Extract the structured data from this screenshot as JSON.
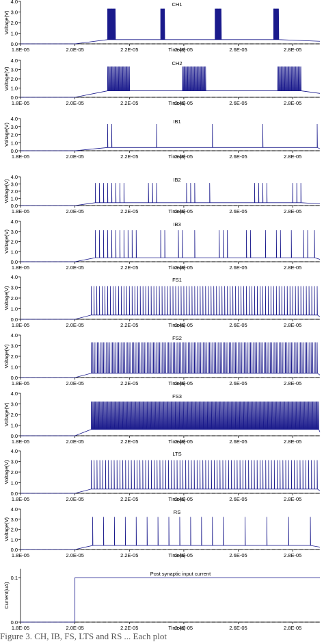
{
  "chart_data": [
    {
      "type": "line",
      "title": "CH1",
      "ylabel": "Voltage(V)",
      "xlabel": "Time(s)",
      "xlim": [
        1.8e-05,
        2.9e-05
      ],
      "ylim": [
        0,
        4
      ],
      "yticks": [
        "0.0",
        "1.0",
        "2.0",
        "3.0",
        "4.0"
      ],
      "xticks": [
        "1.8E-05",
        "2.0E-05",
        "2.2E-05",
        "2.4E-05",
        "2.6E-05",
        "2.8E-05"
      ],
      "baseline": 0.0,
      "onset": 2e-05,
      "peak": 3.3,
      "trough": 0.4,
      "pattern": "bursting",
      "spike_times": [
        2.12e-05,
        2.122e-05,
        2.124e-05,
        2.126e-05,
        2.128e-05,
        2.13e-05,
        2.132e-05,
        2.134e-05,
        2.136e-05,
        2.138e-05,
        2.14e-05,
        2.142e-05,
        2.144e-05,
        2.146e-05,
        2.148e-05,
        2.315e-05,
        2.317e-05,
        2.319e-05,
        2.321e-05,
        2.323e-05,
        2.325e-05,
        2.327e-05,
        2.329e-05,
        2.515e-05,
        2.517e-05,
        2.519e-05,
        2.521e-05,
        2.523e-05,
        2.525e-05,
        2.527e-05,
        2.529e-05,
        2.531e-05,
        2.533e-05,
        2.535e-05,
        2.537e-05,
        2.73e-05,
        2.732e-05,
        2.734e-05,
        2.736e-05,
        2.738e-05,
        2.74e-05,
        2.742e-05,
        2.744e-05,
        2.746e-05,
        2.748e-05
      ]
    },
    {
      "type": "line",
      "title": "CH2",
      "ylabel": "Voltage(V)",
      "xlabel": "Time(s)",
      "xlim": [
        1.8e-05,
        2.9e-05
      ],
      "ylim": [
        0,
        4
      ],
      "yticks": [
        "0.0",
        "1.0",
        "2.0",
        "3.0",
        "4.0"
      ],
      "xticks": [
        "1.8E-05",
        "2.0E-05",
        "2.2E-05",
        "2.4E-05",
        "2.6E-05",
        "2.8E-05"
      ],
      "baseline": 0.0,
      "onset": 2e-05,
      "peak": 3.3,
      "trough": 0.7,
      "pattern": "dense_bursts",
      "bursts": [
        [
          2.12e-05,
          2.2e-05
        ],
        [
          2.395e-05,
          2.48e-05
        ],
        [
          2.745e-05,
          2.83e-05
        ]
      ]
    },
    {
      "type": "line",
      "title": "IB1",
      "ylabel": "Voltage(V)",
      "xlabel": "Time(s)",
      "xlim": [
        1.8e-05,
        2.9e-05
      ],
      "ylim": [
        0,
        4
      ],
      "yticks": [
        "0.0",
        "1.0",
        "2.0",
        "3.0",
        "4.0"
      ],
      "xticks": [
        "1.8E-05",
        "2.0E-05",
        "2.2E-05",
        "2.4E-05",
        "2.6E-05",
        "2.8E-05"
      ],
      "baseline": 0.0,
      "onset": 2e-05,
      "peak": 3.3,
      "trough": 0.4,
      "pattern": "bursting",
      "spike_times": [
        2.12e-05,
        2.135e-05,
        2.3e-05,
        2.505e-05,
        2.69e-05,
        2.89e-05
      ]
    },
    {
      "type": "line",
      "title": "IB2",
      "ylabel": "Voltage(V)",
      "xlabel": "Time(s)",
      "xlim": [
        1.8e-05,
        2.9e-05
      ],
      "ylim": [
        0,
        4
      ],
      "yticks": [
        "0.0",
        "1.0",
        "2.0",
        "3.0",
        "4.0"
      ],
      "xticks": [
        "1.8E-05",
        "2.0E-05",
        "2.2E-05",
        "2.4E-05",
        "2.6E-05",
        "2.8E-05"
      ],
      "baseline": 0.0,
      "onset": 2e-05,
      "peak": 3.1,
      "trough": 0.4,
      "pattern": "bursting",
      "spike_times": [
        2.075e-05,
        2.09e-05,
        2.105e-05,
        2.12e-05,
        2.135e-05,
        2.15e-05,
        2.165e-05,
        2.18e-05,
        2.27e-05,
        2.285e-05,
        2.3e-05,
        2.41e-05,
        2.425e-05,
        2.44e-05,
        2.495e-05,
        2.66e-05,
        2.675e-05,
        2.69e-05,
        2.705e-05,
        2.8e-05,
        2.815e-05,
        2.83e-05
      ]
    },
    {
      "type": "line",
      "title": "IB3",
      "ylabel": "Voltage(V)",
      "xlabel": "Time(s)",
      "xlim": [
        1.8e-05,
        2.9e-05
      ],
      "ylim": [
        0,
        4
      ],
      "yticks": [
        "0.0",
        "1.0",
        "2.0",
        "3.0",
        "4.0"
      ],
      "xticks": [
        "1.8E-05",
        "2.0E-05",
        "2.2E-05",
        "2.4E-05",
        "2.6E-05",
        "2.8E-05"
      ],
      "baseline": 0.0,
      "onset": 2e-05,
      "peak": 3.1,
      "trough": 0.4,
      "pattern": "bursting",
      "spike_times": [
        2.075e-05,
        2.09e-05,
        2.105e-05,
        2.12e-05,
        2.135e-05,
        2.15e-05,
        2.165e-05,
        2.18e-05,
        2.195e-05,
        2.21e-05,
        2.225e-05,
        2.315e-05,
        2.33e-05,
        2.38e-05,
        2.395e-05,
        2.44e-05,
        2.53e-05,
        2.545e-05,
        2.56e-05,
        2.63e-05,
        2.645e-05,
        2.7e-05,
        2.74e-05,
        2.755e-05,
        2.795e-05,
        2.84e-05,
        2.855e-05,
        2.88e-05
      ]
    },
    {
      "type": "line",
      "title": "FS1",
      "ylabel": "Voltage(V)",
      "xlabel": "Time(s)",
      "xlim": [
        1.8e-05,
        2.9e-05
      ],
      "ylim": [
        0,
        4
      ],
      "yticks": [
        "0.0",
        "1.0",
        "2.0",
        "3.0",
        "4.0"
      ],
      "xticks": [
        "1.8E-05",
        "2.0E-05",
        "2.2E-05",
        "2.4E-05",
        "2.6E-05",
        "2.8E-05"
      ],
      "baseline": 0.0,
      "onset": 2e-05,
      "peak": 3.1,
      "trough": 0.4,
      "pattern": "tonic",
      "first_spike": 2.06e-05,
      "last_spike": 2.89e-05,
      "spike_count": 84
    },
    {
      "type": "line",
      "title": "FS2",
      "ylabel": "Voltage(V)",
      "xlabel": "Time(s)",
      "xlim": [
        1.8e-05,
        2.9e-05
      ],
      "ylim": [
        0,
        4
      ],
      "yticks": [
        "0.0",
        "1.0",
        "2.0",
        "3.0",
        "4.0"
      ],
      "xticks": [
        "1.8E-05",
        "2.0E-05",
        "2.2E-05",
        "2.4E-05",
        "2.6E-05",
        "2.8E-05"
      ],
      "baseline": 0.0,
      "onset": 2e-05,
      "peak": 3.3,
      "trough": 0.4,
      "pattern": "tonic",
      "first_spike": 2.06e-05,
      "last_spike": 2.89e-05,
      "spike_count": 150
    },
    {
      "type": "line",
      "title": "FS3",
      "ylabel": "Voltage(V)",
      "xlabel": "Time(s)",
      "xlim": [
        1.8e-05,
        2.9e-05
      ],
      "ylim": [
        0,
        4
      ],
      "yticks": [
        "0.0",
        "1.0",
        "2.0",
        "3.0",
        "4.0"
      ],
      "xticks": [
        "1.8E-05",
        "2.0E-05",
        "2.2E-05",
        "2.4E-05",
        "2.6E-05",
        "2.8E-05"
      ],
      "baseline": 0.0,
      "onset": 2e-05,
      "peak": 3.2,
      "trough": 0.6,
      "pattern": "dense_bursts",
      "bursts": [
        [
          2.06e-05,
          2.895e-05
        ]
      ]
    },
    {
      "type": "line",
      "title": "LTS",
      "ylabel": "Voltage(V)",
      "xlabel": "Time(s)",
      "xlim": [
        1.8e-05,
        2.9e-05
      ],
      "ylim": [
        0,
        4
      ],
      "yticks": [
        "0.0",
        "1.0",
        "2.0",
        "3.0",
        "4.0"
      ],
      "xticks": [
        "1.8E-05",
        "2.0E-05",
        "2.2E-05",
        "2.4E-05",
        "2.6E-05",
        "2.8E-05"
      ],
      "baseline": 0.0,
      "onset": 2e-05,
      "peak": 3.1,
      "trough": 0.4,
      "pattern": "tonic",
      "first_spike": 2.06e-05,
      "last_spike": 2.89e-05,
      "spike_count": 80
    },
    {
      "type": "line",
      "title": "RS",
      "ylabel": "Voltage(V)",
      "xlabel": "Time(s)",
      "xlim": [
        1.8e-05,
        2.9e-05
      ],
      "ylim": [
        0,
        4
      ],
      "yticks": [
        "0.0",
        "1.0",
        "2.0",
        "3.0",
        "4.0"
      ],
      "xticks": [
        "1.8E-05",
        "2.0E-05",
        "2.2E-05",
        "2.4E-05",
        "2.6E-05",
        "2.8E-05"
      ],
      "baseline": 0.0,
      "onset": 2e-05,
      "peak": 3.2,
      "trough": 0.4,
      "pattern": "tonic_ramp",
      "spike_times": [
        2.065e-05,
        2.105e-05,
        2.145e-05,
        2.185e-05,
        2.225e-05,
        2.265e-05,
        2.305e-05,
        2.345e-05,
        2.385e-05,
        2.425e-05,
        2.465e-05,
        2.505e-05,
        2.545e-05,
        2.625e-05,
        2.705e-05,
        2.785e-05,
        2.865e-05
      ]
    },
    {
      "type": "line",
      "title": "",
      "ylabel": "Current(uA)",
      "xlabel": "Time(s)",
      "xlim": [
        1.8e-05,
        2.9e-05
      ],
      "ylim": [
        0,
        0.12
      ],
      "yticks": [
        "0.0",
        "0.1"
      ],
      "xticks": [
        "1.8E-05",
        "2.0E-05",
        "2.2E-05",
        "2.4E-05",
        "2.6E-05",
        "2.8E-05"
      ],
      "annotation": "Post synaptic input current",
      "pattern": "step",
      "step_time": 2e-05,
      "low": 0.0,
      "high": 0.1
    }
  ],
  "caption": "Figure 3.  CH, IB, FS, LTS and RS ...      Each plot"
}
